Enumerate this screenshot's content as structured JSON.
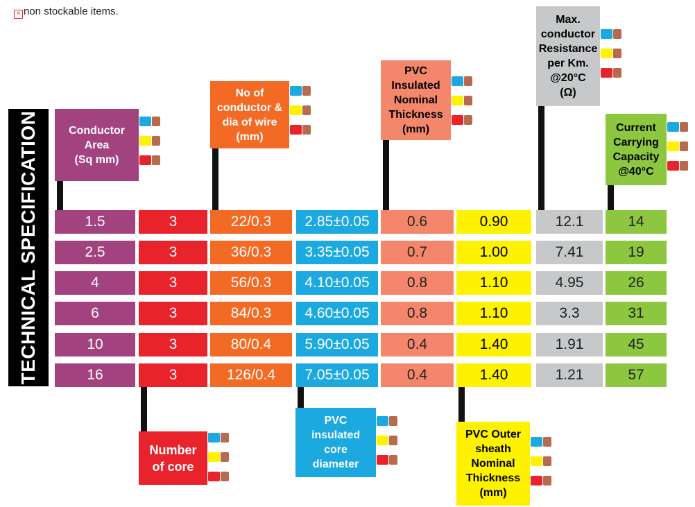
{
  "note": {
    "icon": "checkbox-cross-icon",
    "text": "non stockable items."
  },
  "side_title": "TECHNICAL SPECIFICATION",
  "colors": {
    "purple": "#a2427f",
    "red": "#e8232b",
    "orange": "#f26a24",
    "blue": "#1ba9e0",
    "salmon": "#f4876b",
    "yellow": "#fff200",
    "grey": "#c6c8ca",
    "green": "#8dc63f"
  },
  "headers": {
    "conductor_area": "Conductor\nArea\n(Sq mm)",
    "number_of_core": "Number\nof core",
    "no_of_conductor": "No of\nconductor &\ndia of wire\n(mm)",
    "core_diameter": "PVC\ninsulated\ncore\ndiameter",
    "insulation_thickness": "PVC\nInsulated\nNominal\nThickness\n(mm)",
    "sheath_thickness": "PVC Outer\nsheath\nNominal\nThickness\n(mm)",
    "max_resistance": "Max.\nconductor\nResistance\nper Km.\n@20°C\n(Ω)",
    "current_capacity": "Current\nCarrying\nCapacity\n@40°C"
  },
  "rows": [
    [
      "1.5",
      "3",
      "22/0.3",
      "2.85±0.05",
      "0.6",
      "0.90",
      "12.1",
      "14"
    ],
    [
      "2.5",
      "3",
      "36/0.3",
      "3.35±0.05",
      "0.7",
      "1.00",
      "7.41",
      "19"
    ],
    [
      "4",
      "3",
      "56/0.3",
      "4.10±0.05",
      "0.8",
      "1.10",
      "4.95",
      "26"
    ],
    [
      "6",
      "3",
      "84/0.3",
      "4.60±0.05",
      "0.8",
      "1.10",
      "3.3",
      "31"
    ],
    [
      "10",
      "3",
      "80/0.4",
      "5.90±0.05",
      "0.4",
      "1.40",
      "1.91",
      "45"
    ],
    [
      "16",
      "3",
      "126/0.4",
      "7.05±0.05",
      "0.4",
      "1.40",
      "1.21",
      "57"
    ]
  ]
}
